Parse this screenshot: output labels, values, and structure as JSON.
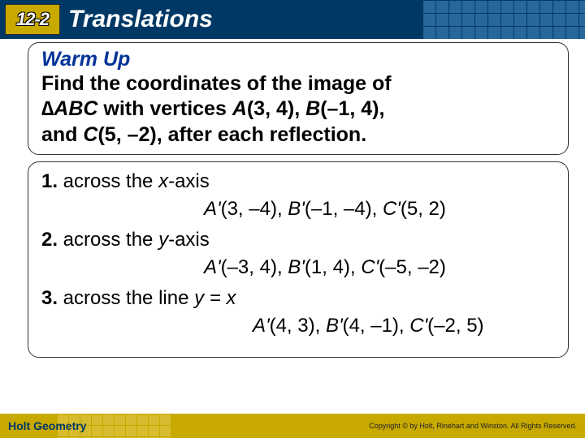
{
  "header": {
    "badge": "12-2",
    "title": "Translations",
    "bg_color": "#003865",
    "badge_bg": "#c7a900",
    "text_color": "#ffffff"
  },
  "warmup": {
    "heading": "Warm Up",
    "heading_color": "#003399",
    "line1": "Find the coordinates of the image of",
    "line2_pre": "∆",
    "line2_tri": "ABC",
    "line2_mid": " with vertices ",
    "line2_A": "A",
    "line2_Acoord": "(3, 4), ",
    "line2_B": "B",
    "line2_Bcoord": "(–1, 4),",
    "line3_pre": "and ",
    "line3_C": "C",
    "line3_Ccoord": "(5, –2), after each reflection."
  },
  "problems": [
    {
      "num": "1.",
      "text_pre": " across the ",
      "axis": "x",
      "text_post": "-axis",
      "ans_A": "A'",
      "ans_Ac": "(3, –4), ",
      "ans_B": "B'",
      "ans_Bc": "(–1, –4), ",
      "ans_C": "C'",
      "ans_Cc": "(5, 2)",
      "ans_pad": "200px"
    },
    {
      "num": "2.",
      "text_pre": " across the ",
      "axis": "y",
      "text_post": "-axis",
      "ans_A": "A'",
      "ans_Ac": "(–3, 4), ",
      "ans_B": "B'",
      "ans_Bc": "(1, 4), ",
      "ans_C": "C'",
      "ans_Cc": "(–5, –2)",
      "ans_pad": "200px"
    },
    {
      "num": "3.",
      "text_pre": " across the line ",
      "axis": "y = x",
      "text_post": "",
      "ans_A": "A'",
      "ans_Ac": "(4, 3), ",
      "ans_B": "B'",
      "ans_Bc": "(4, –1), ",
      "ans_C": "C'",
      "ans_Cc": "(–2, 5)",
      "ans_pad": "260px"
    }
  ],
  "footer": {
    "left": "Holt Geometry",
    "right": "Copyright © by Holt, Rinehart and Winston. All Rights Reserved.",
    "bg_color": "#c7a900"
  }
}
